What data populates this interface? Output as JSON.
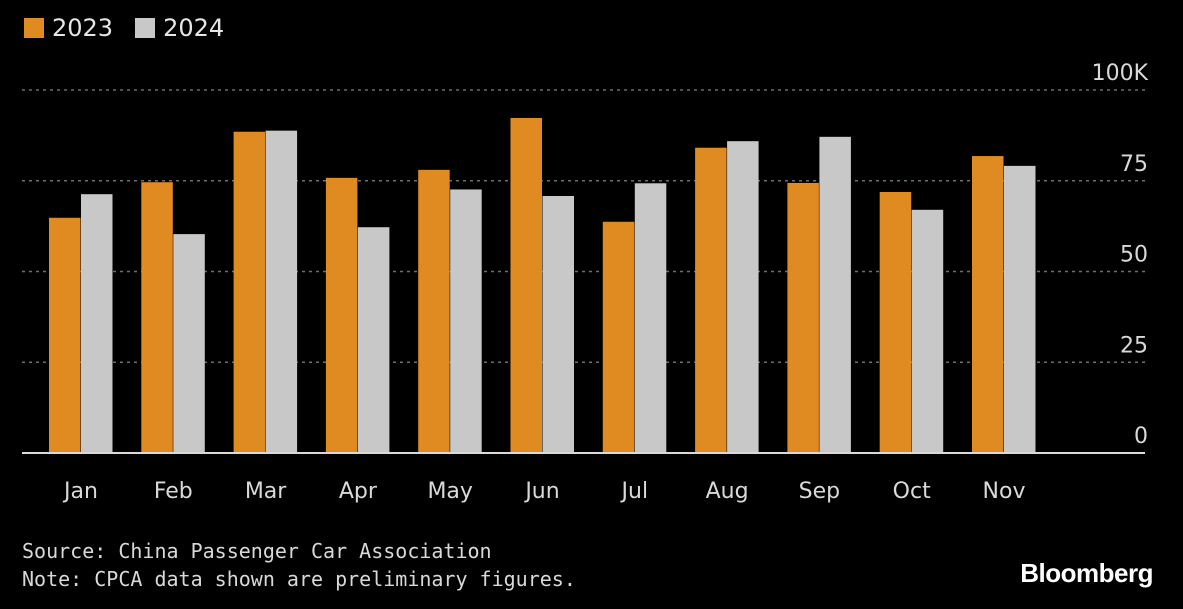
{
  "chart_data": {
    "type": "bar",
    "categories": [
      "Jan",
      "Feb",
      "Mar",
      "Apr",
      "May",
      "Jun",
      "Jul",
      "Aug",
      "Sep",
      "Oct",
      "Nov"
    ],
    "series": [
      {
        "name": "2023",
        "color": "#e08a22",
        "values": [
          64.8,
          74.6,
          88.5,
          75.8,
          78.0,
          92.3,
          63.7,
          84.1,
          74.4,
          71.9,
          81.8
        ]
      },
      {
        "name": "2024",
        "color": "#c8c8c8",
        "values": [
          71.3,
          60.3,
          88.8,
          62.2,
          72.6,
          70.8,
          74.3,
          85.9,
          87.1,
          67.0,
          79.1
        ]
      }
    ],
    "yticks": [
      0,
      25,
      50,
      75,
      100
    ],
    "ytick_labels": [
      "0",
      "25",
      "50",
      "75",
      "100K"
    ],
    "ylim": [
      0,
      100
    ],
    "grid": true,
    "legend_position": "top-left"
  },
  "footer": {
    "source": "Source: China Passenger Car Association",
    "note": "Note: CPCA data shown are preliminary figures."
  },
  "brand": "Bloomberg",
  "colors": {
    "background": "#000000",
    "grid": "#6e6e6e",
    "axis": "#d9d9d9"
  }
}
